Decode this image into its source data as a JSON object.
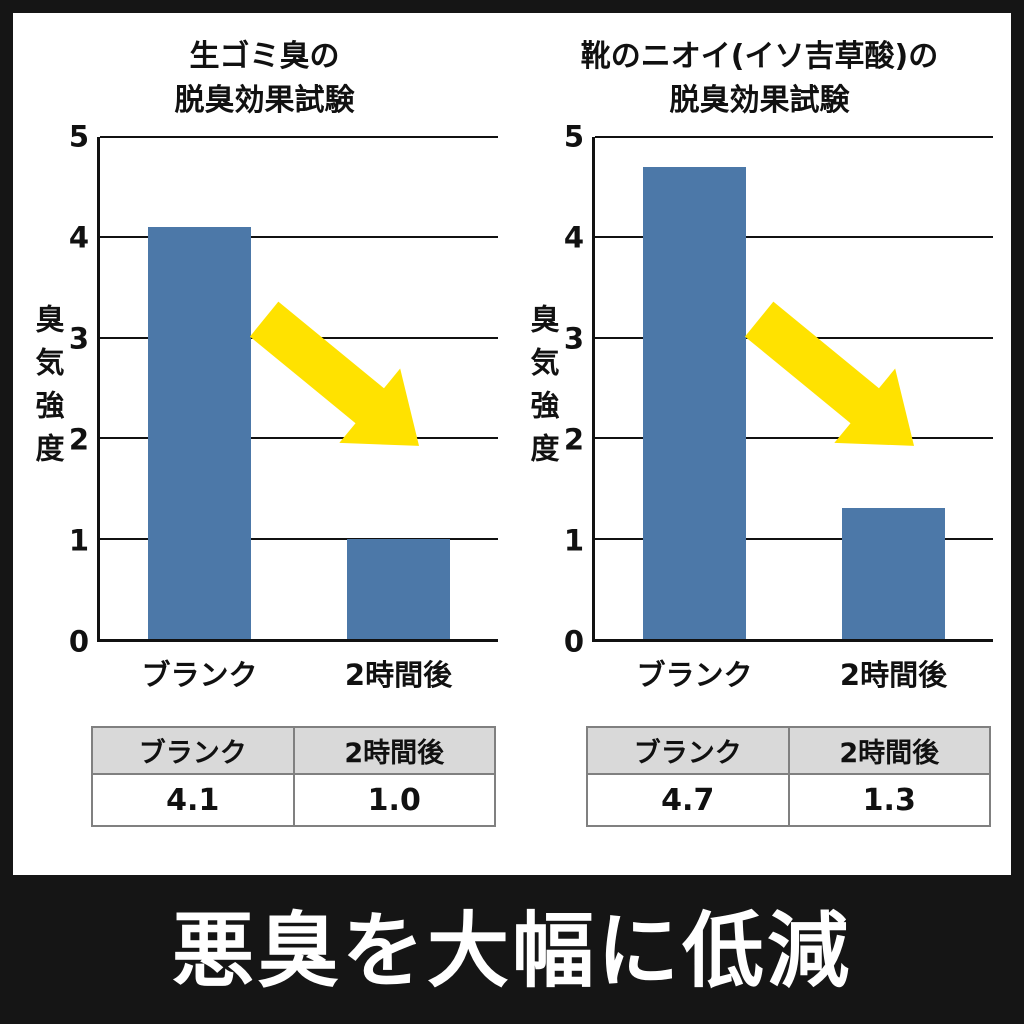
{
  "banner": {
    "text": "悪臭を大幅に低減"
  },
  "colors": {
    "bar": "#4c78a8",
    "arrow": "#ffe200",
    "table_header_bg": "#d9d9d9",
    "frame": "#151515",
    "grid": "#111111"
  },
  "chart_data": [
    {
      "type": "bar",
      "title": "生ゴミ臭の脱臭効果試験",
      "title_lines": [
        "生ゴミ臭の",
        "脱臭効果試験"
      ],
      "ylabel": "臭気強度",
      "categories": [
        "ブランク",
        "2時間後"
      ],
      "values": [
        4.1,
        1.0
      ],
      "ylim": [
        0,
        5
      ],
      "yticks": [
        "5",
        "4",
        "3",
        "2",
        "1",
        "0"
      ],
      "grid": true,
      "legend": false,
      "table": {
        "headers": [
          "ブランク",
          "2時間後"
        ],
        "row": [
          "4.1",
          "1.0"
        ]
      }
    },
    {
      "type": "bar",
      "title": "靴のニオイ(イソ吉草酸)の脱臭効果試験",
      "title_lines": [
        "靴のニオイ(イソ吉草酸)の",
        "脱臭効果試験"
      ],
      "ylabel": "臭気強度",
      "categories": [
        "ブランク",
        "2時間後"
      ],
      "values": [
        4.7,
        1.3
      ],
      "ylim": [
        0,
        5
      ],
      "yticks": [
        "5",
        "4",
        "3",
        "2",
        "1",
        "0"
      ],
      "grid": true,
      "legend": false,
      "table": {
        "headers": [
          "ブランク",
          "2時間後"
        ],
        "row": [
          "4.7",
          "1.3"
        ]
      }
    }
  ]
}
